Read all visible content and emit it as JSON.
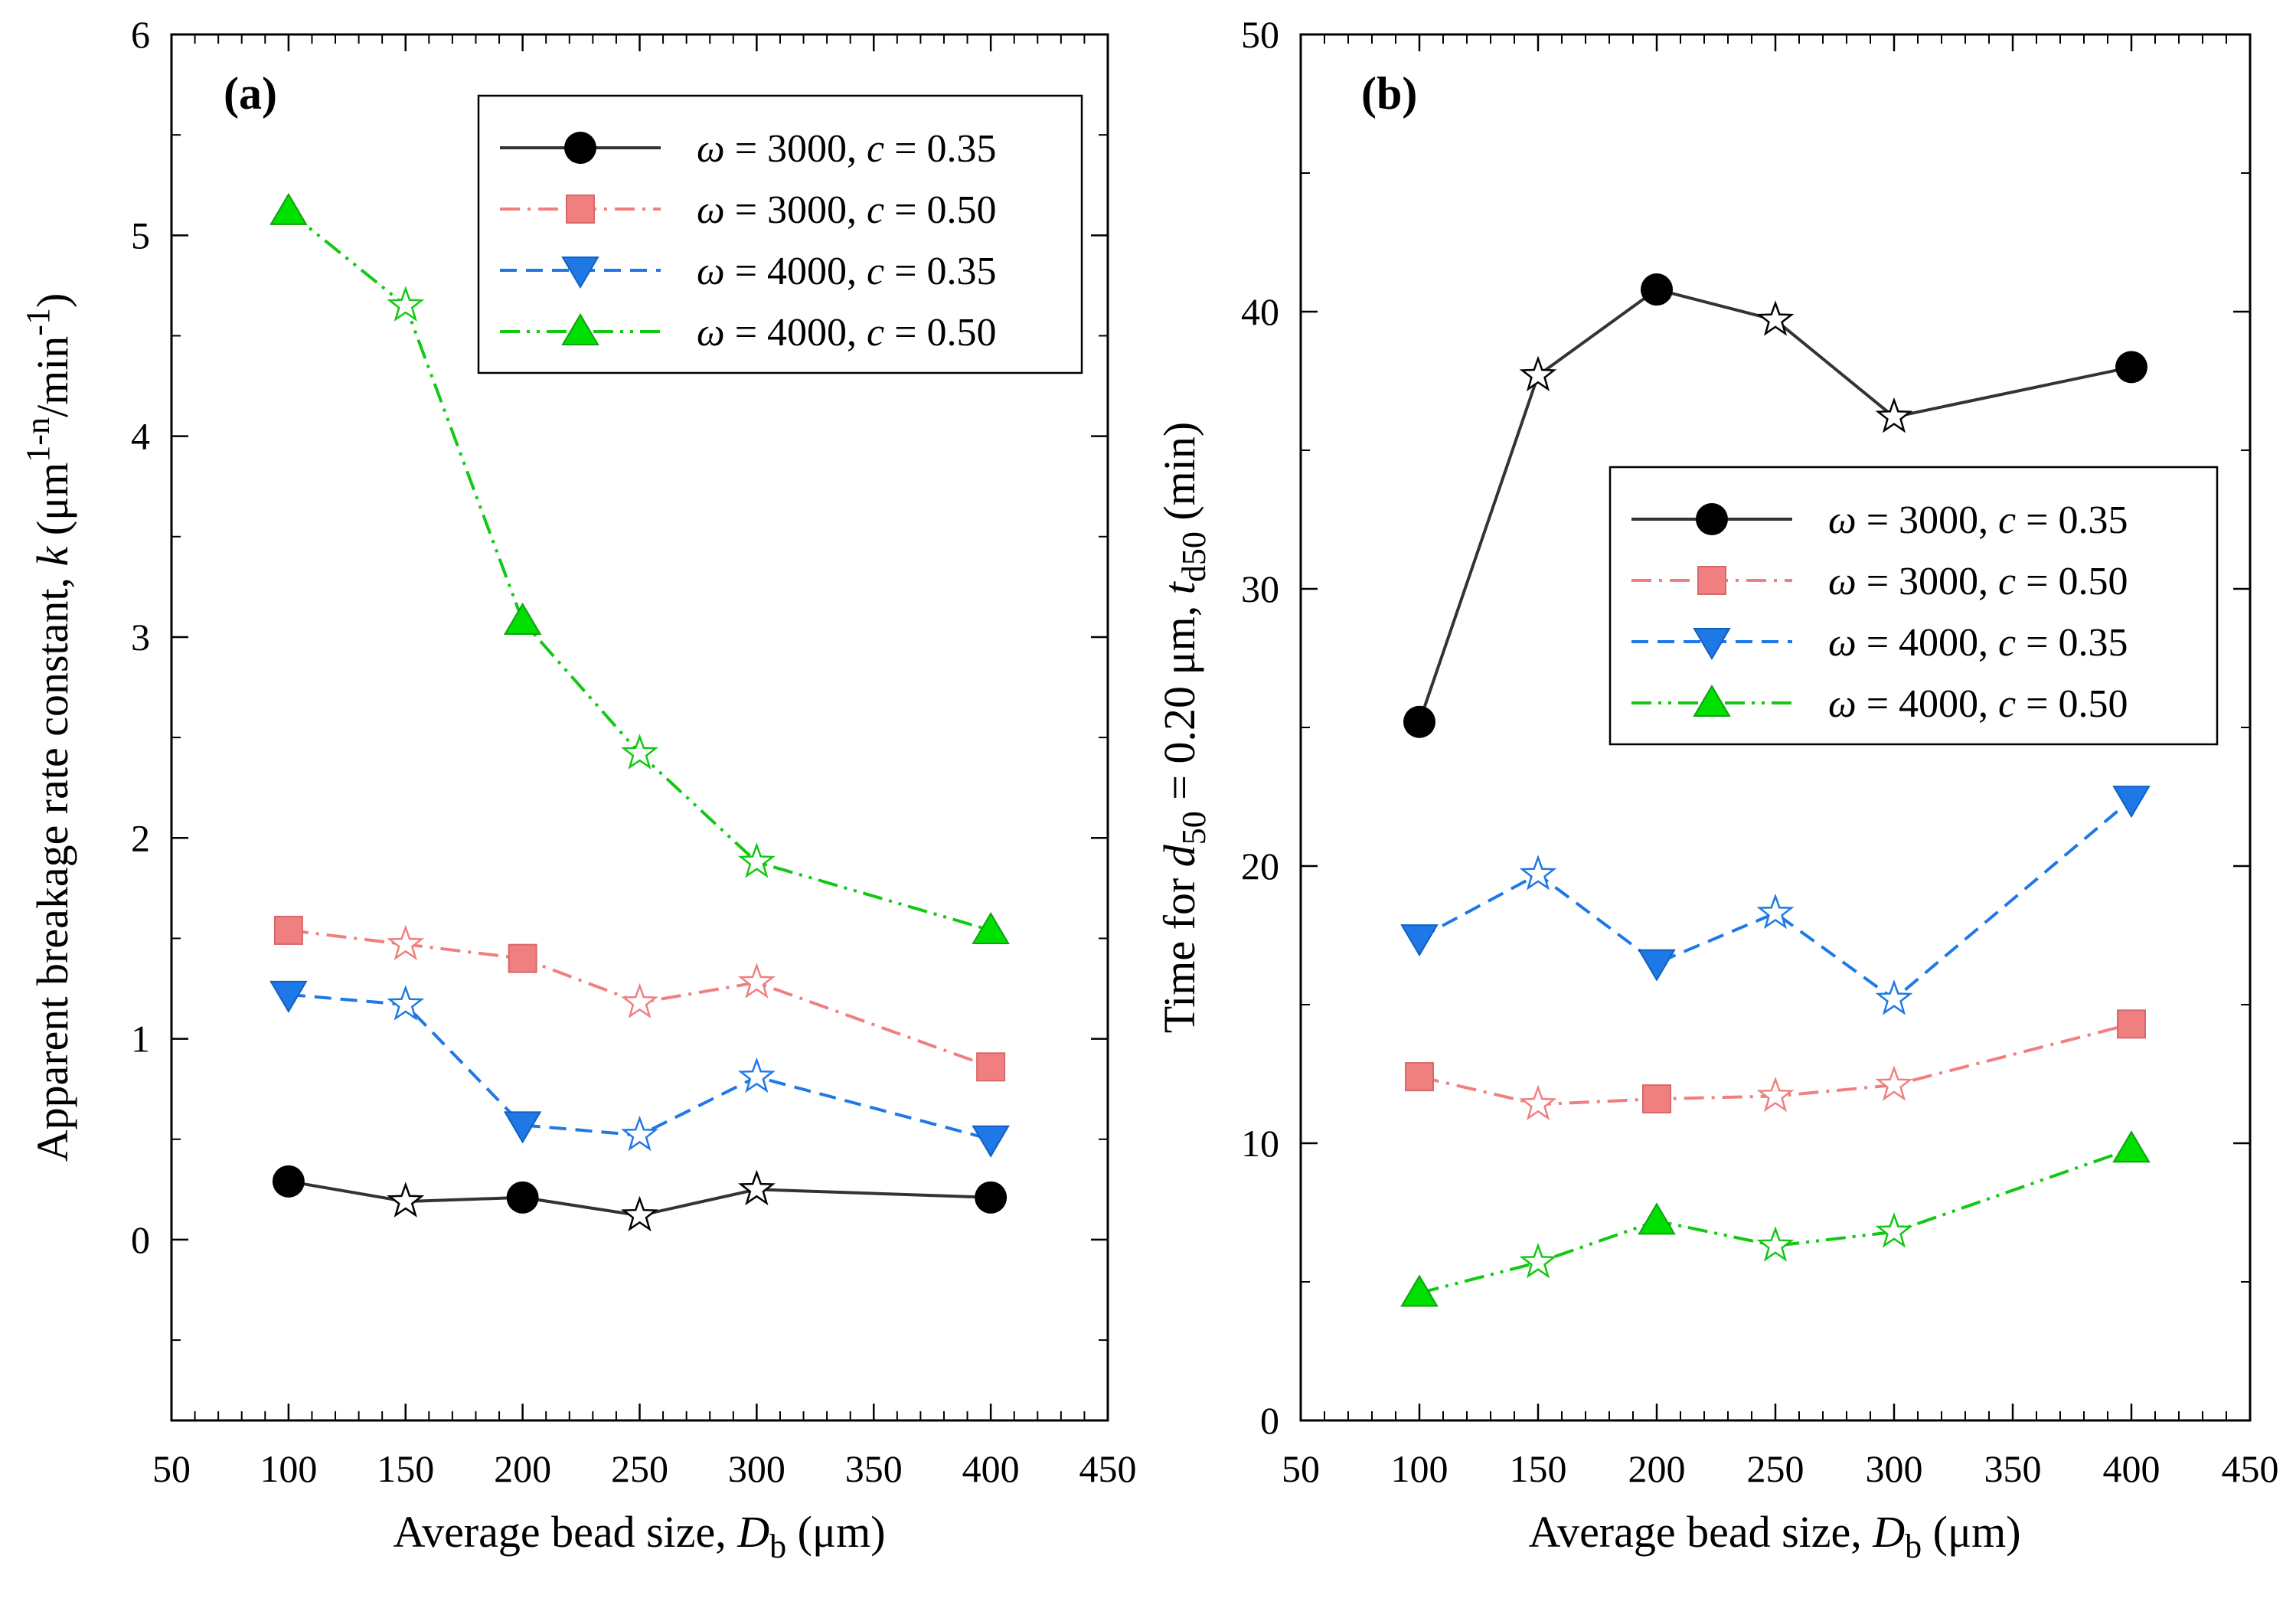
{
  "colors": {
    "s1": "#333333",
    "s2": "#F08080",
    "s3": "#1E78E6",
    "s4": "#12C812",
    "s1_marker": "#000000",
    "s2_marker": "#F08080",
    "s3_marker": "#1E78E6",
    "s4_marker": "#00E000"
  },
  "chart_data": [
    {
      "type": "line",
      "panel": "(a)",
      "xlabel": "Average bead size, D_b (μm)",
      "xlabel_main": "Average bead size, ",
      "xlabel_var": "D",
      "xlabel_sub": "b",
      "xlabel_unit": " (μm)",
      "ylabel": "Apparent breakage rate constant, k (μm^(1-n)/min^-1)",
      "ylabel_main": "Apparent breakage rate constant, ",
      "ylabel_var": "k",
      "ylabel_unit_open": " (μm",
      "ylabel_sup1": "1-n",
      "ylabel_mid": "/min",
      "ylabel_sup2": "-1",
      "ylabel_close": ")",
      "xlim": [
        50,
        450
      ],
      "ylim": [
        -0.9,
        6
      ],
      "xticks": [
        "50",
        "100",
        "150",
        "200",
        "250",
        "300",
        "350",
        "400",
        "450"
      ],
      "yticks": [
        "0",
        "1",
        "2",
        "3",
        "4",
        "5",
        "6"
      ],
      "x": [
        100,
        150,
        200,
        250,
        300,
        400
      ],
      "legend_position": "top-right",
      "series": [
        {
          "name": "ω = 3000, c = 0.35",
          "label_omega": "ω",
          "label_mid": " = 3000, ",
          "label_c": "c",
          "label_end": " = 0.35",
          "values": [
            0.29,
            0.19,
            0.21,
            0.12,
            0.25,
            0.21
          ],
          "marker": "circle",
          "dash": "solid",
          "star_points": [
            false,
            true,
            false,
            true,
            true,
            false
          ]
        },
        {
          "name": "ω = 3000, c = 0.50",
          "label_omega": "ω",
          "label_mid": " = 3000, ",
          "label_c": "c",
          "label_end": " = 0.50",
          "values": [
            1.54,
            1.47,
            1.4,
            1.18,
            1.28,
            0.86
          ],
          "marker": "square",
          "dash": "dashdot",
          "star_points": [
            false,
            true,
            false,
            true,
            true,
            false
          ]
        },
        {
          "name": "ω = 4000, c = 0.35",
          "label_omega": "ω",
          "label_mid": " = 4000, ",
          "label_c": "c",
          "label_end": " = 0.35",
          "values": [
            1.22,
            1.17,
            0.57,
            0.52,
            0.81,
            0.5
          ],
          "marker": "triangle-down",
          "dash": "dashed",
          "star_points": [
            false,
            true,
            false,
            true,
            true,
            false
          ]
        },
        {
          "name": "ω = 4000, c = 0.50",
          "label_omega": "ω",
          "label_mid": " = 4000, ",
          "label_c": "c",
          "label_end": " = 0.50",
          "values": [
            5.12,
            4.65,
            3.08,
            2.42,
            1.88,
            1.54
          ],
          "marker": "triangle-up",
          "dash": "dashdotdot",
          "star_points": [
            false,
            true,
            false,
            true,
            true,
            false
          ]
        }
      ]
    },
    {
      "type": "line",
      "panel": "(b)",
      "xlabel": "Average bead size, D_b (μm)",
      "xlabel_main": "Average bead size, ",
      "xlabel_var": "D",
      "xlabel_sub": "b",
      "xlabel_unit": " (μm)",
      "ylabel": "Time for d50 = 0.20 μm, t_d50 (min)",
      "ylabel_pre": "Time for ",
      "ylabel_var1": "d",
      "ylabel_sub1": "50",
      "ylabel_mid": " = 0.20 μm, ",
      "ylabel_var2": "t",
      "ylabel_sub2": "d50",
      "ylabel_unit": " (min)",
      "xlim": [
        50,
        450
      ],
      "ylim": [
        0,
        50
      ],
      "xticks": [
        "50",
        "100",
        "150",
        "200",
        "250",
        "300",
        "350",
        "400",
        "450"
      ],
      "yticks": [
        "0",
        "10",
        "20",
        "30",
        "40",
        "50"
      ],
      "x": [
        100,
        150,
        200,
        250,
        300,
        400
      ],
      "legend_position": "center-right",
      "series": [
        {
          "name": "ω = 3000, c = 0.35",
          "label_omega": "ω",
          "label_mid": " = 3000, ",
          "label_c": "c",
          "label_end": " = 0.35",
          "values": [
            25.2,
            37.7,
            40.8,
            39.7,
            36.2,
            38.0
          ],
          "marker": "circle",
          "dash": "solid",
          "star_points": [
            false,
            true,
            false,
            true,
            true,
            false
          ]
        },
        {
          "name": "ω = 3000, c = 0.50",
          "label_omega": "ω",
          "label_mid": " = 3000, ",
          "label_c": "c",
          "label_end": " = 0.50",
          "values": [
            12.4,
            11.4,
            11.6,
            11.7,
            12.1,
            14.3
          ],
          "marker": "square",
          "dash": "dashdot",
          "star_points": [
            false,
            true,
            false,
            true,
            true,
            false
          ]
        },
        {
          "name": "ω = 4000, c = 0.35",
          "label_omega": "ω",
          "label_mid": " = 4000, ",
          "label_c": "c",
          "label_end": " = 0.35",
          "values": [
            17.4,
            19.7,
            16.5,
            18.3,
            15.2,
            22.4
          ],
          "marker": "triangle-down",
          "dash": "dashed",
          "star_points": [
            false,
            true,
            false,
            true,
            true,
            false
          ]
        },
        {
          "name": "ω = 4000, c = 0.50",
          "label_omega": "ω",
          "label_mid": " = 4000, ",
          "label_c": "c",
          "label_end": " = 0.50",
          "values": [
            4.6,
            5.7,
            7.2,
            6.3,
            6.8,
            9.8
          ],
          "marker": "triangle-up",
          "dash": "dashdotdot",
          "star_points": [
            false,
            true,
            false,
            true,
            true,
            false
          ]
        }
      ]
    }
  ]
}
